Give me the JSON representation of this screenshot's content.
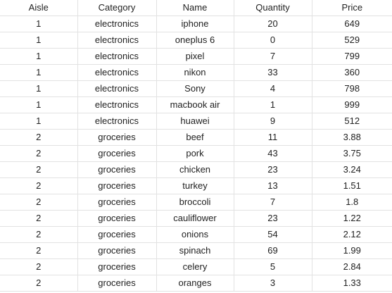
{
  "sheet": {
    "headers": [
      "Aisle",
      "Category",
      "Name",
      "Quantity",
      "Price"
    ],
    "rows": [
      [
        "1",
        "electronics",
        "iphone",
        "20",
        "649"
      ],
      [
        "1",
        "electronics",
        "oneplus 6",
        "0",
        "529"
      ],
      [
        "1",
        "electronics",
        "pixel",
        "7",
        "799"
      ],
      [
        "1",
        "electronics",
        "nikon",
        "33",
        "360"
      ],
      [
        "1",
        "electronics",
        "Sony",
        "4",
        "798"
      ],
      [
        "1",
        "electronics",
        "macbook air",
        "1",
        "999"
      ],
      [
        "1",
        "electronics",
        "huawei",
        "9",
        "512"
      ],
      [
        "2",
        "groceries",
        "beef",
        "11",
        "3.88"
      ],
      [
        "2",
        "groceries",
        "pork",
        "43",
        "3.75"
      ],
      [
        "2",
        "groceries",
        "chicken",
        "23",
        "3.24"
      ],
      [
        "2",
        "groceries",
        "turkey",
        "13",
        "1.51"
      ],
      [
        "2",
        "groceries",
        "broccoli",
        "7",
        "1.8"
      ],
      [
        "2",
        "groceries",
        "cauliflower",
        "23",
        "1.22"
      ],
      [
        "2",
        "groceries",
        "onions",
        "54",
        "2.12"
      ],
      [
        "2",
        "groceries",
        "spinach",
        "69",
        "1.99"
      ],
      [
        "2",
        "groceries",
        "celery",
        "5",
        "2.84"
      ],
      [
        "2",
        "groceries",
        "oranges",
        "3",
        "1.33"
      ]
    ]
  },
  "colors": {
    "gridline": "#e2e2e2",
    "text": "#222222",
    "background": "#ffffff"
  }
}
